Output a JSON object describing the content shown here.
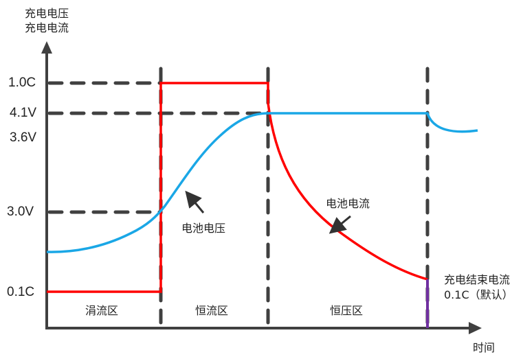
{
  "y_axis_label": [
    "充电电压",
    "充电电流"
  ],
  "x_axis_label": "时间",
  "y_ticks": [
    "1.0C",
    "4.1V",
    "3.6V",
    "3.0V",
    "0.1C"
  ],
  "zones": [
    "涓流区",
    "恒流区",
    "恒压区"
  ],
  "annotations": {
    "voltage_curve": "电池电压",
    "current_curve": "电池电流",
    "end_current": [
      "充电结束电流",
      "0.1C（默认）"
    ]
  },
  "colors": {
    "voltage": "#1aa7e6",
    "current": "#ff0000",
    "end_marker": "#7030a0",
    "axis": "#404040"
  }
}
